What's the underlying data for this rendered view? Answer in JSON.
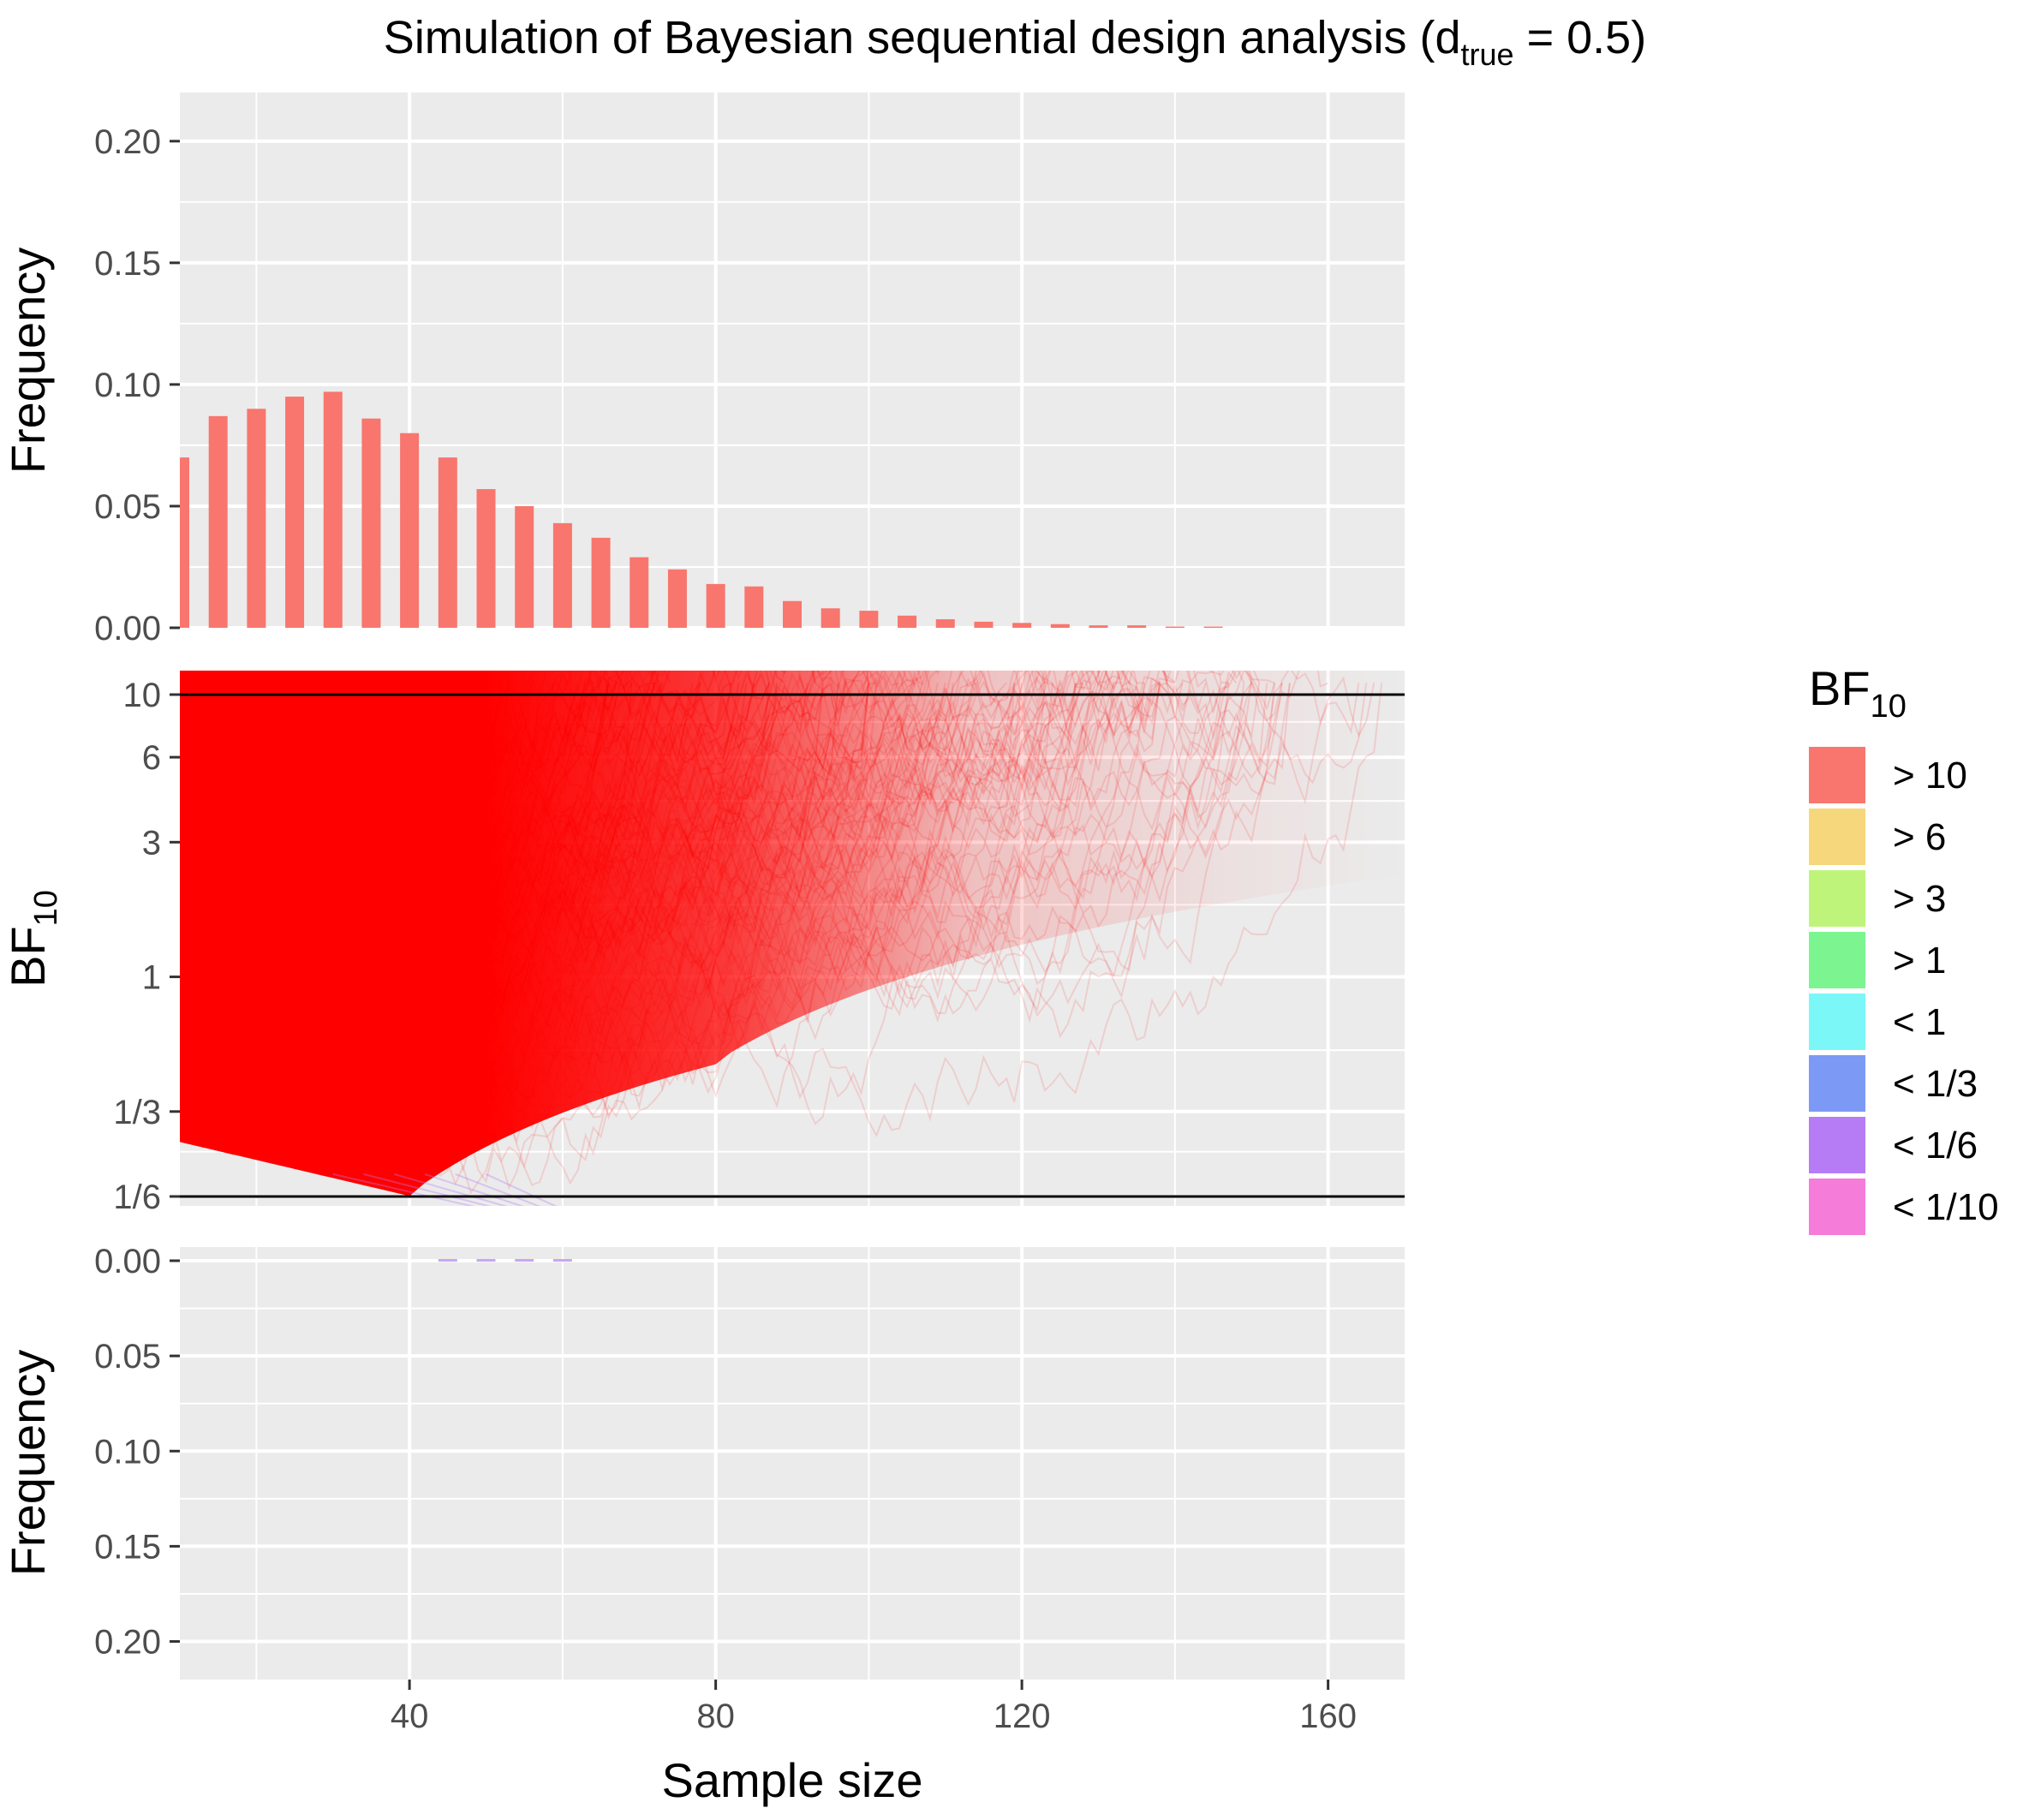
{
  "chart_data": {
    "type": "bar",
    "title_main": "Simulation of Bayesian sequential design analysis (d",
    "title_sub": "true",
    "title_end": " = 0.5)",
    "xlabel": "Sample size",
    "x_ticks": [
      "40",
      "80",
      "120",
      "160"
    ],
    "x_tick_values": [
      40,
      80,
      120,
      160
    ],
    "xlim": [
      10,
      170
    ],
    "top_panel": {
      "ylabel": "Frequency",
      "ylim": [
        0,
        0.22
      ],
      "y_ticks": [
        "0.00",
        "0.05",
        "0.10",
        "0.15",
        "0.20"
      ],
      "y_tick_values": [
        0,
        0.05,
        0.1,
        0.15,
        0.2
      ],
      "series": [
        {
          "category": "> 10",
          "x": [
            10,
            15,
            20,
            25,
            30,
            35,
            40,
            45,
            50,
            55,
            60,
            65,
            70,
            75,
            80,
            85,
            90,
            95,
            100,
            105,
            110,
            115,
            120,
            125,
            130,
            135,
            140,
            145
          ],
          "values": [
            0.07,
            0.087,
            0.09,
            0.095,
            0.097,
            0.086,
            0.08,
            0.07,
            0.057,
            0.05,
            0.043,
            0.037,
            0.029,
            0.024,
            0.018,
            0.017,
            0.011,
            0.008,
            0.007,
            0.005,
            0.0035,
            0.0025,
            0.002,
            0.0015,
            0.001,
            0.001,
            0.0005,
            0.0005
          ]
        }
      ]
    },
    "middle_panel": {
      "ylabel_main": "BF",
      "ylabel_sub": "10",
      "y_ticks": [
        "10",
        "6",
        "3",
        "1",
        "1/3",
        "1/6"
      ],
      "y_tick_values": [
        10,
        6,
        3,
        1,
        0.3333,
        0.1667
      ],
      "boundaries": [
        10,
        0.1667
      ]
    },
    "bottom_panel": {
      "ylabel": "Frequency",
      "ylim": [
        0,
        0.22
      ],
      "y_ticks": [
        "0.00",
        "0.05",
        "0.10",
        "0.15",
        "0.20"
      ],
      "y_tick_values": [
        0,
        0.05,
        0.1,
        0.15,
        0.2
      ],
      "series": [
        {
          "category": "< 1/6",
          "x": [
            45,
            50,
            55,
            60
          ],
          "values": [
            0.0005,
            0.0005,
            0.0005,
            0.0005
          ]
        }
      ]
    },
    "legend": {
      "title_main": "BF",
      "title_sub": "10",
      "placement": "right",
      "items": [
        {
          "label": "> 10",
          "color": "#F8766D"
        },
        {
          "label": "> 6",
          "color": "#F7D77C"
        },
        {
          "label": "> 3",
          "color": "#BFF47A"
        },
        {
          "label": "> 1",
          "color": "#7CF590"
        },
        {
          "label": "< 1",
          "color": "#7CF7F7"
        },
        {
          "label": "< 1/3",
          "color": "#7C9AF5"
        },
        {
          "label": "< 1/6",
          "color": "#B57CF5"
        },
        {
          "label": "< 1/10",
          "color": "#F57CD8"
        }
      ]
    },
    "colors": {
      "panel_bg": "#EBEBEB",
      "grid": "#FFFFFF",
      "bar": "#F8766D",
      "trajectory": "#FF0000",
      "boundary_line": "#000000"
    }
  }
}
